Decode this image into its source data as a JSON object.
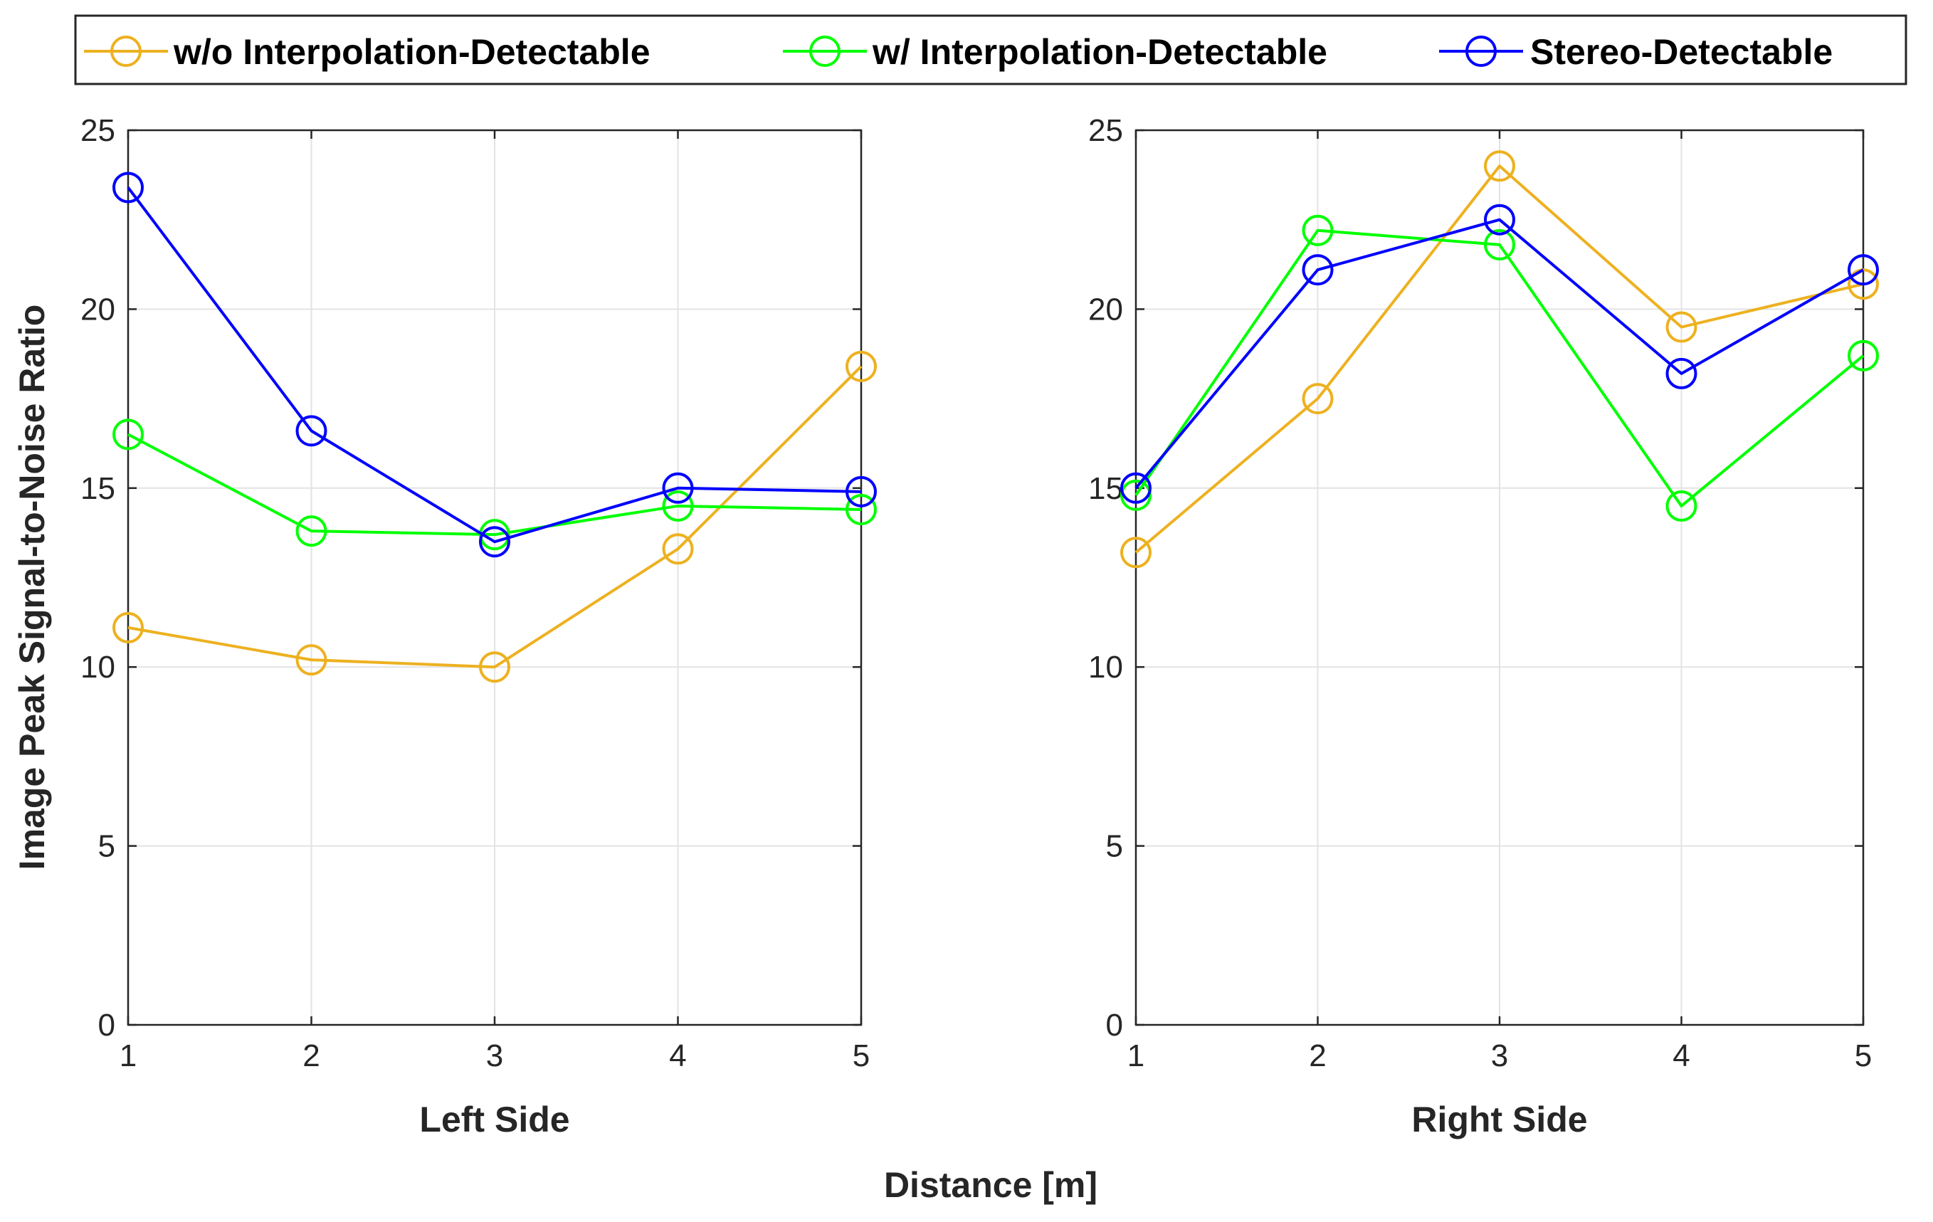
{
  "figure": {
    "shared_ylabel": "Image Peak Signal-to-Noise Ratio",
    "shared_xlabel": "Distance [m]",
    "legend": [
      {
        "label": "w/o Interpolation-Detectable",
        "color": "#EDB120"
      },
      {
        "label": "w/ Interpolation-Detectable",
        "color": "#00FF00"
      },
      {
        "label": "Stereo-Detectable",
        "color": "#0000FF"
      }
    ]
  },
  "chart_data": [
    {
      "type": "line",
      "title": "",
      "xlabel": "Left Side",
      "ylabel": "Image Peak Signal-to-Noise Ratio",
      "x": [
        1,
        2,
        3,
        4,
        5
      ],
      "xticks": [
        "1",
        "2",
        "3",
        "4",
        "5"
      ],
      "yticks": [
        "0",
        "5",
        "10",
        "15",
        "20",
        "25"
      ],
      "xlim": [
        1,
        5
      ],
      "ylim": [
        0,
        25
      ],
      "grid": true,
      "marker": "circle",
      "series": [
        {
          "name": "w/o Interpolation-Detectable",
          "color": "#EDB120",
          "values": [
            11.1,
            10.2,
            10.0,
            13.3,
            18.4
          ]
        },
        {
          "name": "w/ Interpolation-Detectable",
          "color": "#00FF00",
          "values": [
            16.5,
            13.8,
            13.7,
            14.5,
            14.4
          ]
        },
        {
          "name": "Stereo-Detectable",
          "color": "#0000FF",
          "values": [
            23.4,
            16.6,
            13.5,
            15.0,
            14.9
          ]
        }
      ]
    },
    {
      "type": "line",
      "title": "",
      "xlabel": "Right Side",
      "ylabel": "",
      "x": [
        1,
        2,
        3,
        4,
        5
      ],
      "xticks": [
        "1",
        "2",
        "3",
        "4",
        "5"
      ],
      "yticks": [
        "0",
        "5",
        "10",
        "15",
        "20",
        "25"
      ],
      "xlim": [
        1,
        5
      ],
      "ylim": [
        0,
        25
      ],
      "grid": true,
      "marker": "circle",
      "series": [
        {
          "name": "w/o Interpolation-Detectable",
          "color": "#EDB120",
          "values": [
            13.2,
            17.5,
            24.0,
            19.5,
            20.7
          ]
        },
        {
          "name": "w/ Interpolation-Detectable",
          "color": "#00FF00",
          "values": [
            14.8,
            22.2,
            21.8,
            14.5,
            18.7
          ]
        },
        {
          "name": "Stereo-Detectable",
          "color": "#0000FF",
          "values": [
            15.0,
            21.1,
            22.5,
            18.2,
            21.1
          ]
        }
      ]
    }
  ]
}
